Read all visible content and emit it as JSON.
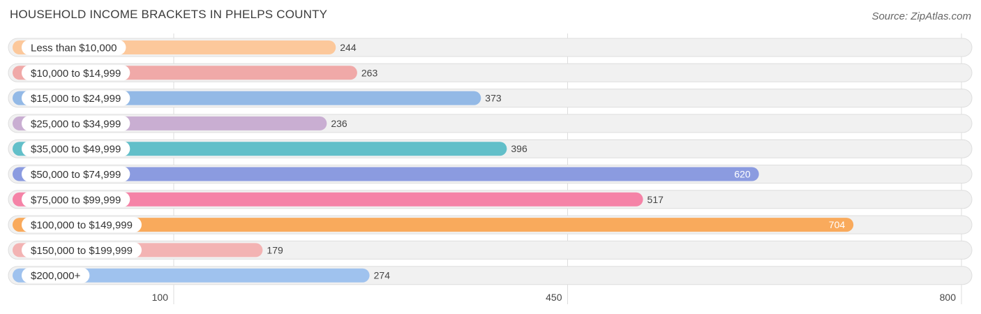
{
  "header": {
    "title": "HOUSEHOLD INCOME BRACKETS IN PHELPS COUNTY",
    "source": "Source: ZipAtlas.com"
  },
  "chart_data": {
    "type": "bar",
    "orientation": "horizontal",
    "title": "HOUSEHOLD INCOME BRACKETS IN PHELPS COUNTY",
    "xlabel": "",
    "ylabel": "",
    "categories": [
      "Less than $10,000",
      "$10,000 to $14,999",
      "$15,000 to $24,999",
      "$25,000 to $34,999",
      "$35,000 to $49,999",
      "$50,000 to $74,999",
      "$75,000 to $99,999",
      "$100,000 to $149,999",
      "$150,000 to $199,999",
      "$200,000+"
    ],
    "values": [
      244,
      263,
      373,
      236,
      396,
      620,
      517,
      704,
      179,
      274
    ],
    "value_labels": [
      "244",
      "263",
      "373",
      "236",
      "396",
      "620",
      "517",
      "704",
      "179",
      "274"
    ],
    "colors": [
      "#fcc89b",
      "#f0a9a8",
      "#93b9e6",
      "#c9aed2",
      "#62bfc9",
      "#8b9be0",
      "#f583a7",
      "#f9aa5c",
      "#f3b3b3",
      "#9fc2ee"
    ],
    "xticks": [
      100,
      450,
      800
    ],
    "xtick_labels": [
      "100",
      "450",
      "800"
    ],
    "grid": true
  }
}
